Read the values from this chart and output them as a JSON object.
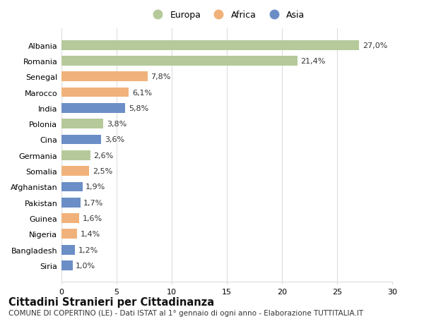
{
  "categories": [
    "Albania",
    "Romania",
    "Senegal",
    "Marocco",
    "India",
    "Polonia",
    "Cina",
    "Germania",
    "Somalia",
    "Afghanistan",
    "Pakistan",
    "Guinea",
    "Nigeria",
    "Bangladesh",
    "Siria"
  ],
  "values": [
    27.0,
    21.4,
    7.8,
    6.1,
    5.8,
    3.8,
    3.6,
    2.6,
    2.5,
    1.9,
    1.7,
    1.6,
    1.4,
    1.2,
    1.0
  ],
  "labels": [
    "27,0%",
    "21,4%",
    "7,8%",
    "6,1%",
    "5,8%",
    "3,8%",
    "3,6%",
    "2,6%",
    "2,5%",
    "1,9%",
    "1,7%",
    "1,6%",
    "1,4%",
    "1,2%",
    "1,0%"
  ],
  "continents": [
    "Europa",
    "Europa",
    "Africa",
    "Africa",
    "Asia",
    "Europa",
    "Asia",
    "Europa",
    "Africa",
    "Asia",
    "Asia",
    "Africa",
    "Africa",
    "Asia",
    "Asia"
  ],
  "colors": {
    "Europa": "#b5c99a",
    "Africa": "#f0b27a",
    "Asia": "#6b8ec7"
  },
  "xlim": [
    0,
    30
  ],
  "xticks": [
    0,
    5,
    10,
    15,
    20,
    25,
    30
  ],
  "title": "Cittadini Stranieri per Cittadinanza",
  "subtitle": "COMUNE DI COPERTINO (LE) - Dati ISTAT al 1° gennaio di ogni anno - Elaborazione TUTTITALIA.IT",
  "background_color": "#ffffff",
  "grid_color": "#dddddd",
  "title_fontsize": 10.5,
  "subtitle_fontsize": 7.5,
  "bar_label_fontsize": 8,
  "tick_fontsize": 8,
  "legend_fontsize": 9
}
